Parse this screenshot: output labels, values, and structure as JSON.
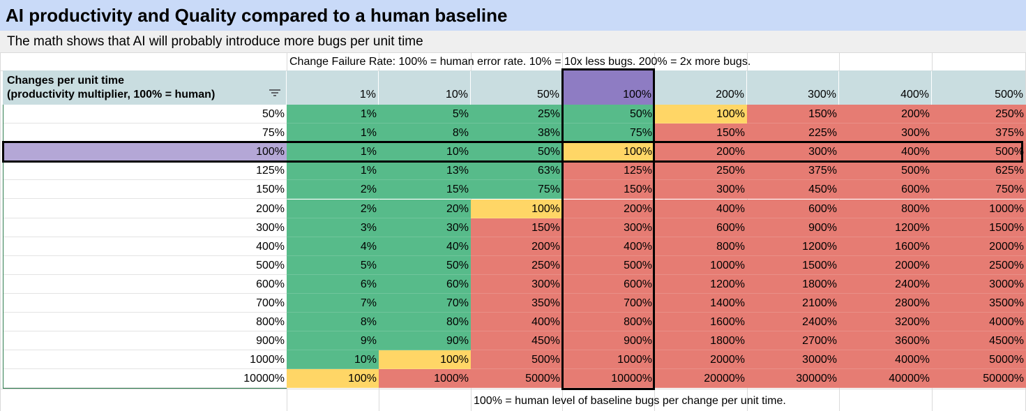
{
  "title": "AI productivity and Quality compared to a human baseline",
  "subtitle": "The math shows that AI will probably introduce more bugs per unit time",
  "top_note": "Change Failure Rate: 100% = human error rate. 10% = 10x less bugs. 200% = 2x more bugs.",
  "bottom_note": "100% = human level of baseline bugs per change per unit time.",
  "corner_header": {
    "line1": "Changes per unit time",
    "line2": "(productivity multiplier, 100% = human)",
    "filter_icon": "filter-icon"
  },
  "colors": {
    "green": "#57bb8a",
    "yellow": "#ffd666",
    "red": "#e67c73",
    "purple": "#8e7cc3",
    "lavender": "#b4a7d6",
    "header": "#c9dde0",
    "title_bg": "#c9daf8",
    "subtitle_bg": "#efefef"
  },
  "column_headers": [
    "1%",
    "10%",
    "50%",
    "100%",
    "200%",
    "300%",
    "400%",
    "500%"
  ],
  "rows": [
    {
      "label": "50%",
      "values": [
        "1%",
        "5%",
        "25%",
        "50%",
        "100%",
        "150%",
        "200%",
        "250%"
      ]
    },
    {
      "label": "75%",
      "values": [
        "1%",
        "8%",
        "38%",
        "75%",
        "150%",
        "225%",
        "300%",
        "375%"
      ]
    },
    {
      "label": "100%",
      "values": [
        "1%",
        "10%",
        "50%",
        "100%",
        "200%",
        "300%",
        "400%",
        "500%"
      ]
    },
    {
      "label": "125%",
      "values": [
        "1%",
        "13%",
        "63%",
        "125%",
        "250%",
        "375%",
        "500%",
        "625%"
      ]
    },
    {
      "label": "150%",
      "values": [
        "2%",
        "15%",
        "75%",
        "150%",
        "300%",
        "450%",
        "600%",
        "750%"
      ]
    },
    {
      "label": "200%",
      "values": [
        "2%",
        "20%",
        "100%",
        "200%",
        "400%",
        "600%",
        "800%",
        "1000%"
      ]
    },
    {
      "label": "300%",
      "values": [
        "3%",
        "30%",
        "150%",
        "300%",
        "600%",
        "900%",
        "1200%",
        "1500%"
      ]
    },
    {
      "label": "400%",
      "values": [
        "4%",
        "40%",
        "200%",
        "400%",
        "800%",
        "1200%",
        "1600%",
        "2000%"
      ]
    },
    {
      "label": "500%",
      "values": [
        "5%",
        "50%",
        "250%",
        "500%",
        "1000%",
        "1500%",
        "2000%",
        "2500%"
      ]
    },
    {
      "label": "600%",
      "values": [
        "6%",
        "60%",
        "300%",
        "600%",
        "1200%",
        "1800%",
        "2400%",
        "3000%"
      ]
    },
    {
      "label": "700%",
      "values": [
        "7%",
        "70%",
        "350%",
        "700%",
        "1400%",
        "2100%",
        "2800%",
        "3500%"
      ]
    },
    {
      "label": "800%",
      "values": [
        "8%",
        "80%",
        "400%",
        "800%",
        "1600%",
        "2400%",
        "3200%",
        "4000%"
      ]
    },
    {
      "label": "900%",
      "values": [
        "9%",
        "90%",
        "450%",
        "900%",
        "1800%",
        "2700%",
        "3600%",
        "4500%"
      ]
    },
    {
      "label": "1000%",
      "values": [
        "10%",
        "100%",
        "500%",
        "1000%",
        "2000%",
        "3000%",
        "4000%",
        "5000%"
      ]
    },
    {
      "label": "10000%",
      "values": [
        "100%",
        "1000%",
        "5000%",
        "10000%",
        "20000%",
        "30000%",
        "40000%",
        "50000%"
      ]
    }
  ]
}
